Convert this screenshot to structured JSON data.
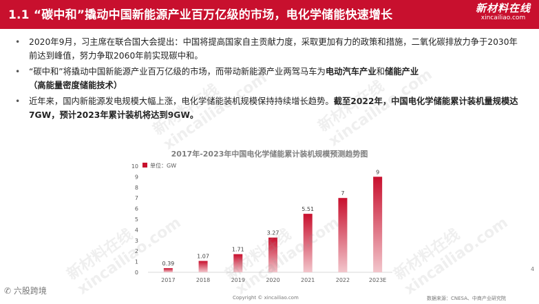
{
  "header": {
    "title": "1.1 “碳中和”撬动中国新能源产业百万亿级的市场，电化学储能快速增长",
    "brand_cn": "新材料在线",
    "brand_en": "xincailiao.com"
  },
  "bullets": [
    {
      "text": "2020年9月，习主席在联合国大会提出：中国将提高国家自主贡献力度，采取更加有力的政策和措施，二氧化碳排放力争于2030年前达到峰值，努力争取2060年前实现碳中和。"
    },
    {
      "text_a": "“碳中和”将撬动中国新能源产业百万亿级的市场，而带动新能源产业两驾马车为",
      "bold_a": "电动汽车产业",
      "text_b": "和",
      "bold_b": "储能产业",
      "bold_c": "（高能量密度储能技术）"
    },
    {
      "text_a": "近年来，国内新能源发电规模大幅上涨，电化学储能装机规模保持持续增长趋势。",
      "bold_a": "截至2022年，中国电化学储能累计装机量规模达7GW，预计2023年累计装机将达到9GW。"
    }
  ],
  "chart_data": {
    "type": "bar",
    "title": "2017年-2023年中国电化学储能累计装机规模预测趋势图",
    "legend": "单位：GW",
    "categories": [
      "2017",
      "2018",
      "2019",
      "2020",
      "2021",
      "2022",
      "2023E"
    ],
    "values": [
      0.39,
      1.07,
      1.71,
      3.27,
      5.51,
      7,
      9
    ],
    "value_labels": [
      "0.39",
      "1.07",
      "1.71",
      "3.27",
      "5.51",
      "7",
      "9"
    ],
    "yticks": [
      "0",
      "1",
      "2",
      "3",
      "4",
      "5",
      "6",
      "7",
      "8",
      "9",
      "10"
    ],
    "ylim": [
      0,
      10
    ],
    "color_light": "#f2c6cc",
    "color_dark": "#c8102e",
    "legend_color": "#c8102e"
  },
  "footer": {
    "copyright": "Copyright © xincailiao.com",
    "source": "数据来源：CNESA、中商产业研究院",
    "page": "4",
    "logo_bl": "六股跨境"
  },
  "watermark": {
    "cn": "新材料在线",
    "en": "xincailiao.com"
  }
}
